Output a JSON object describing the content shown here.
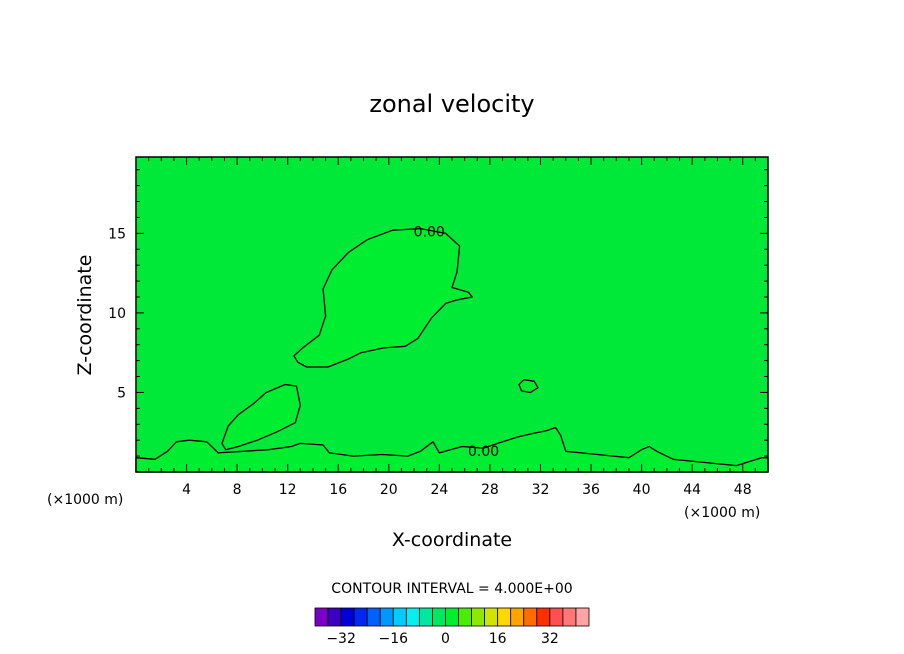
{
  "chart_data": {
    "type": "heatmap",
    "title": "zonal velocity",
    "xlabel": "X-coordinate",
    "ylabel": "Z-coordinate",
    "x_unit": "(×1000 m)",
    "z_unit": "(×1000 m)",
    "xlim": [
      0,
      50
    ],
    "ylim": [
      0,
      19.8
    ],
    "x_ticks": [
      4,
      8,
      12,
      16,
      20,
      24,
      28,
      32,
      36,
      40,
      44,
      48
    ],
    "y_ticks": [
      5,
      10,
      15
    ],
    "background_value": 0,
    "contour_interval_text": "CONTOUR INTERVAL = 4.000E+00",
    "contour_labels": [
      {
        "text": "0.00",
        "x": 23.2,
        "z": 14.8
      },
      {
        "text": "0.00",
        "x": 27.5,
        "z": 1.0
      }
    ],
    "regions": [
      {
        "name": "upper-cell",
        "level": 0,
        "color": "#00ee30",
        "outline": [
          [
            12.5,
            7.3
          ],
          [
            13.2,
            7.8
          ],
          [
            14.5,
            8.6
          ],
          [
            15.0,
            9.8
          ],
          [
            14.8,
            11.5
          ],
          [
            15.5,
            12.7
          ],
          [
            16.8,
            13.8
          ],
          [
            18.3,
            14.6
          ],
          [
            20.3,
            15.2
          ],
          [
            22.5,
            15.3
          ],
          [
            24.5,
            15.0
          ],
          [
            25.6,
            14.2
          ],
          [
            25.4,
            12.6
          ],
          [
            25.0,
            11.6
          ],
          [
            26.3,
            11.3
          ],
          [
            26.6,
            11.0
          ],
          [
            25.3,
            10.8
          ],
          [
            24.5,
            10.6
          ],
          [
            23.4,
            9.7
          ],
          [
            22.3,
            8.4
          ],
          [
            21.3,
            7.9
          ],
          [
            19.6,
            7.8
          ],
          [
            17.8,
            7.5
          ],
          [
            16.8,
            7.1
          ],
          [
            15.2,
            6.6
          ],
          [
            13.5,
            6.6
          ],
          [
            12.8,
            6.9
          ]
        ]
      },
      {
        "name": "lower-left-cell",
        "level": 0,
        "color": "#00ee30",
        "outline": [
          [
            6.8,
            1.8
          ],
          [
            7.3,
            2.9
          ],
          [
            8.1,
            3.6
          ],
          [
            9.3,
            4.3
          ],
          [
            10.3,
            5.0
          ],
          [
            11.8,
            5.5
          ],
          [
            12.7,
            5.4
          ],
          [
            13.0,
            4.2
          ],
          [
            12.6,
            3.1
          ],
          [
            11.1,
            2.5
          ],
          [
            9.6,
            2.0
          ],
          [
            8.1,
            1.6
          ],
          [
            7.1,
            1.4
          ]
        ]
      },
      {
        "name": "mid-blob",
        "level": 0,
        "color": "#00ee30",
        "outline": [
          [
            30.3,
            5.5
          ],
          [
            30.7,
            5.8
          ],
          [
            31.5,
            5.7
          ],
          [
            31.8,
            5.3
          ],
          [
            31.2,
            5.0
          ],
          [
            30.5,
            5.1
          ]
        ]
      },
      {
        "name": "surface-band",
        "level": 0,
        "color": "#00ee30",
        "outline": [
          [
            0,
            0.9
          ],
          [
            1.5,
            0.8
          ],
          [
            2.5,
            1.3
          ],
          [
            3.2,
            1.9
          ],
          [
            4.2,
            2.0
          ],
          [
            5.6,
            1.9
          ],
          [
            6.5,
            1.2
          ],
          [
            8.5,
            1.3
          ],
          [
            10.5,
            1.4
          ],
          [
            12.3,
            1.6
          ],
          [
            13.0,
            1.8
          ],
          [
            14.8,
            1.7
          ],
          [
            15.3,
            1.2
          ],
          [
            17.2,
            1.0
          ],
          [
            19.5,
            1.1
          ],
          [
            21.5,
            1.0
          ],
          [
            22.5,
            1.3
          ],
          [
            23.5,
            1.9
          ],
          [
            24.0,
            1.2
          ],
          [
            25.8,
            1.6
          ],
          [
            27.5,
            1.5
          ],
          [
            29.0,
            1.9
          ],
          [
            30.2,
            2.2
          ],
          [
            31.3,
            2.4
          ],
          [
            32.5,
            2.6
          ],
          [
            33.2,
            2.8
          ],
          [
            33.6,
            2.3
          ],
          [
            34.0,
            1.3
          ],
          [
            36.5,
            1.1
          ],
          [
            39.0,
            0.9
          ],
          [
            40.0,
            1.4
          ],
          [
            40.6,
            1.6
          ],
          [
            41.2,
            1.3
          ],
          [
            42.5,
            0.8
          ],
          [
            45.0,
            0.6
          ],
          [
            47.5,
            0.4
          ],
          [
            48.7,
            0.7
          ],
          [
            49.5,
            0.9
          ],
          [
            50,
            0.9
          ],
          [
            50,
            0
          ],
          [
            0,
            0
          ]
        ]
      }
    ],
    "colorbar": {
      "colors": [
        "#7a00c8",
        "#3c00c0",
        "#0000d8",
        "#0028f0",
        "#0060ff",
        "#0098ff",
        "#00ccff",
        "#00f0ec",
        "#00e8a0",
        "#00e860",
        "#00ee30",
        "#48ee00",
        "#90e800",
        "#d0e400",
        "#ffd800",
        "#ffa400",
        "#ff6c00",
        "#ff3000",
        "#ff5050",
        "#ff7878",
        "#ffa4a4"
      ],
      "tick_labels": [
        "-32",
        "-16",
        "0",
        "16",
        "32"
      ],
      "tick_values": [
        -32,
        -16,
        0,
        16,
        32
      ],
      "range": [
        -40,
        44
      ]
    }
  }
}
